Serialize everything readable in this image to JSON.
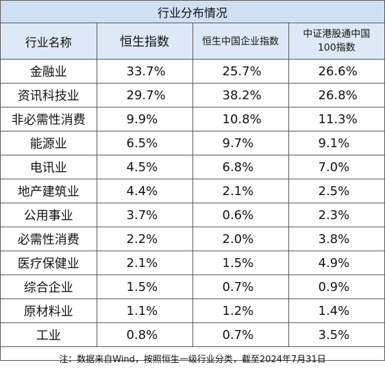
{
  "title": "行业分布情况",
  "headers": {
    "name": "行业名称",
    "hsi": "恒生指数",
    "hscei": "恒生中国企业指数",
    "csi_line1": "中证港股通中国",
    "csi_line2": "100指数"
  },
  "rows": [
    {
      "industry": "金融业",
      "hsi": "33.7%",
      "hscei": "25.7%",
      "csi": "26.6%"
    },
    {
      "industry": "资讯科技业",
      "hsi": "29.7%",
      "hscei": "38.2%",
      "csi": "26.8%"
    },
    {
      "industry": "非必需性消费",
      "hsi": "9.9%",
      "hscei": "10.8%",
      "csi": "11.3%"
    },
    {
      "industry": "能源业",
      "hsi": "6.5%",
      "hscei": "9.7%",
      "csi": "9.1%"
    },
    {
      "industry": "电讯业",
      "hsi": "4.5%",
      "hscei": "6.8%",
      "csi": "7.0%"
    },
    {
      "industry": "地产建筑业",
      "hsi": "4.4%",
      "hscei": "2.1%",
      "csi": "2.5%"
    },
    {
      "industry": "公用事业",
      "hsi": "3.7%",
      "hscei": "0.6%",
      "csi": "2.3%"
    },
    {
      "industry": "必需性消费",
      "hsi": "2.2%",
      "hscei": "2.0%",
      "csi": "3.8%"
    },
    {
      "industry": "医疗保健业",
      "hsi": "2.1%",
      "hscei": "1.5%",
      "csi": "4.9%"
    },
    {
      "industry": "综合企业",
      "hsi": "1.5%",
      "hscei": "0.7%",
      "csi": "0.9%"
    },
    {
      "industry": "原材料业",
      "hsi": "1.1%",
      "hscei": "1.2%",
      "csi": "1.4%"
    },
    {
      "industry": "工业",
      "hsi": "0.8%",
      "hscei": "0.7%",
      "csi": "3.5%"
    }
  ],
  "note": "注：数据来自Wind，按照恒生一级行业分类，截至2024年7月31日",
  "colors": {
    "title_bg": "#cfe0f2",
    "header_bg": "#dde9f6",
    "border": "#555555"
  }
}
